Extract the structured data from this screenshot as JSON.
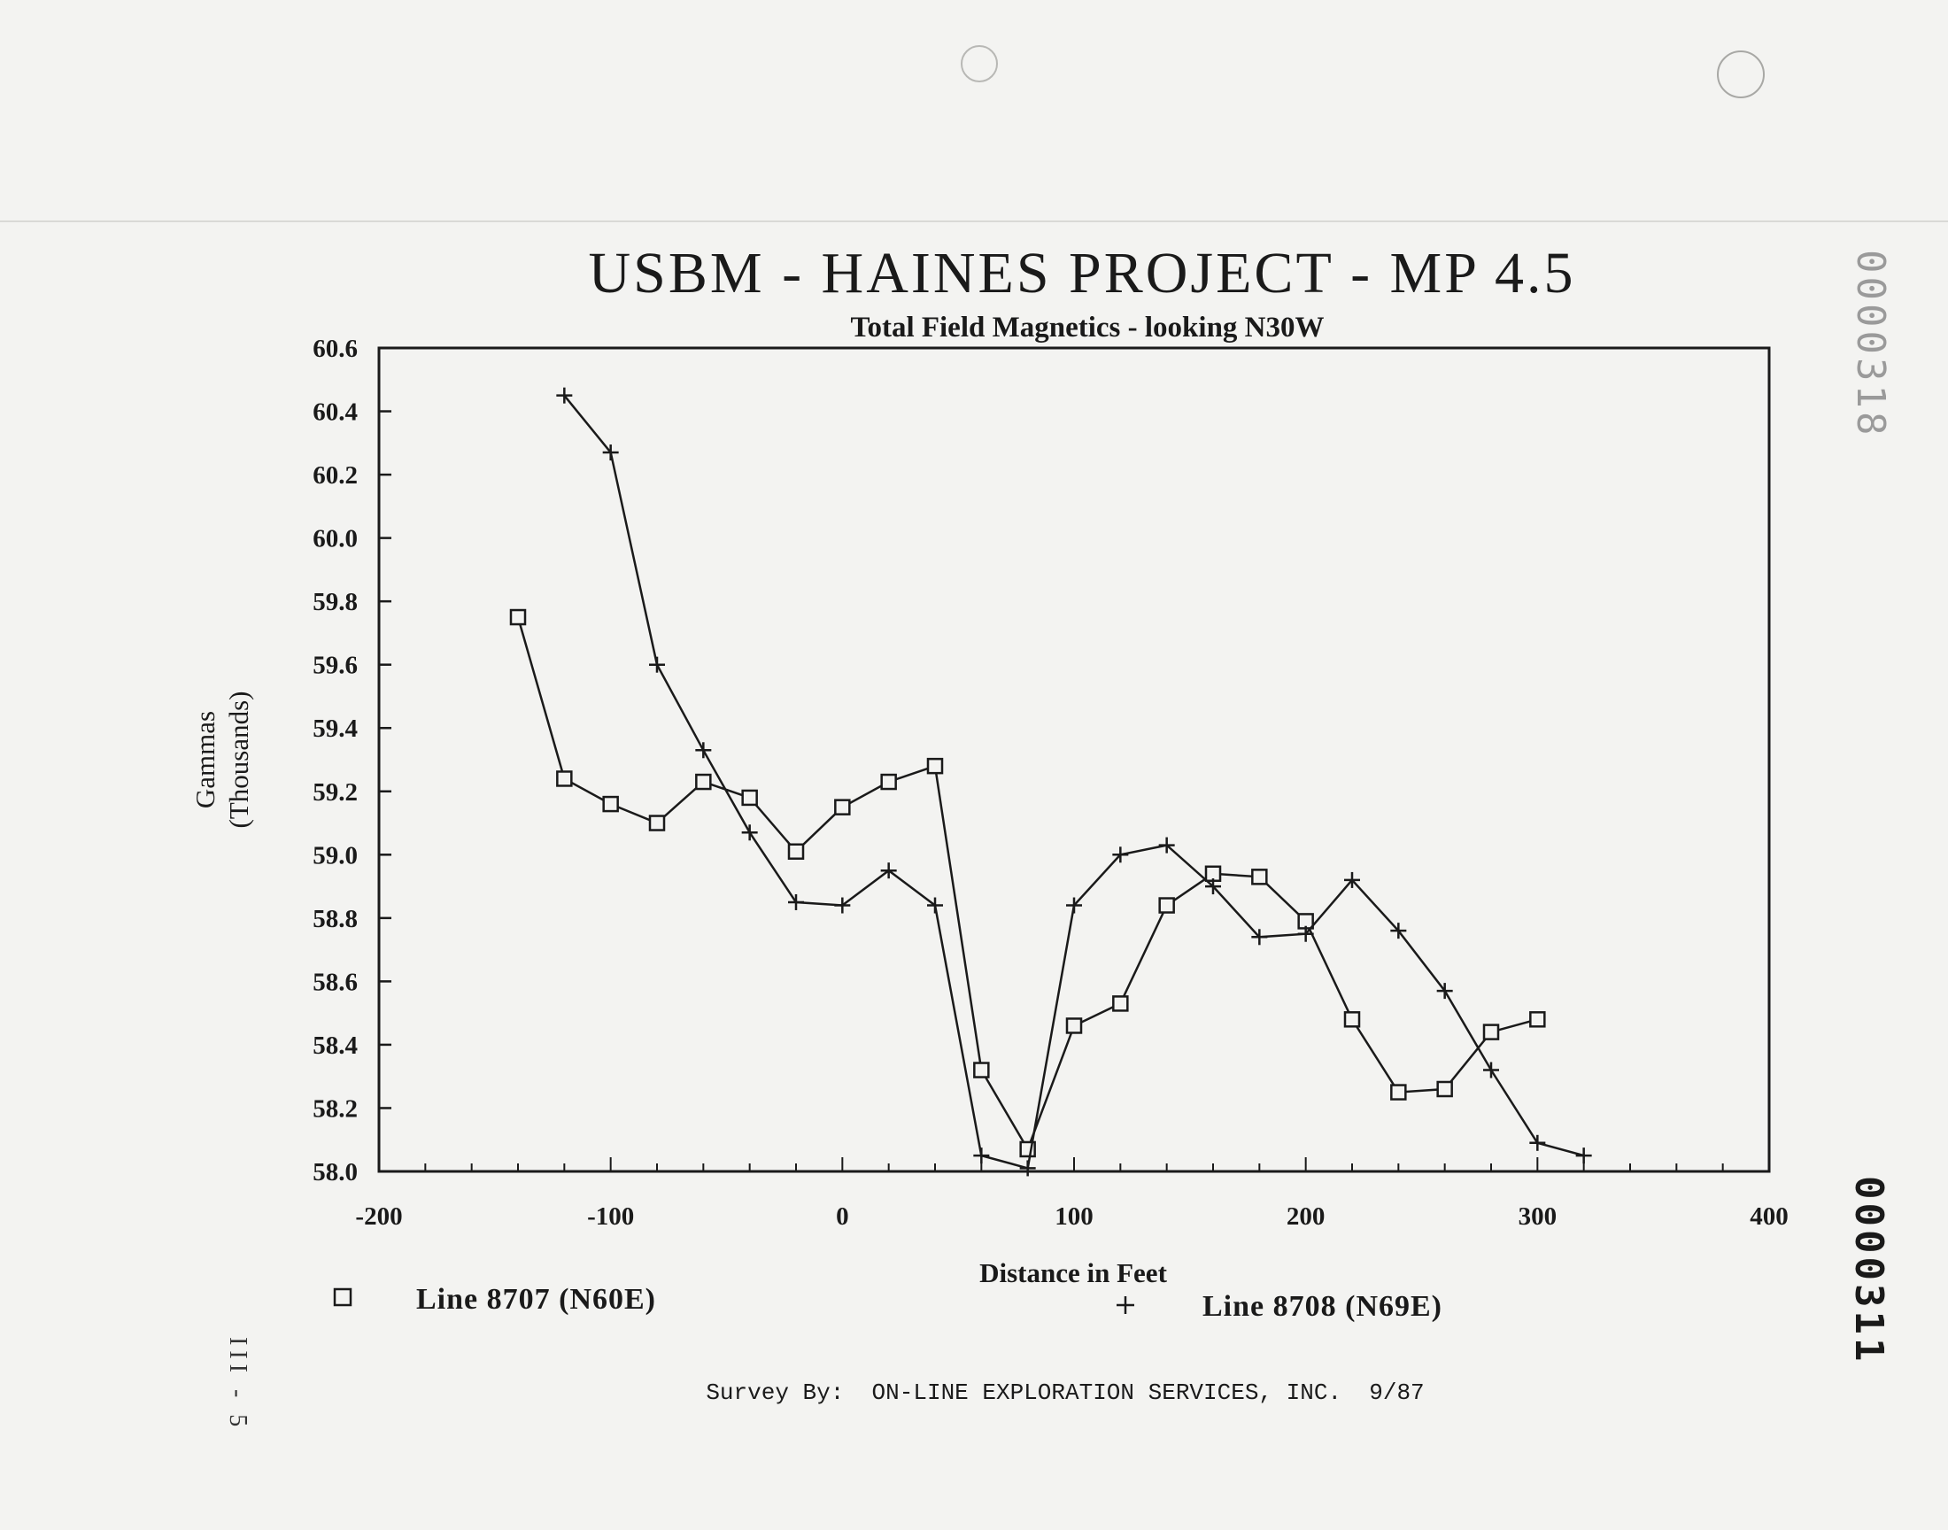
{
  "page": {
    "background": "#f3f3f1",
    "ink": "#1a1a1a",
    "stamp_top": "0000318",
    "stamp_bottom": "0000311",
    "page_label": "III - 5",
    "footer": "Survey By:  ON-LINE EXPLORATION SERVICES, INC.  9/87"
  },
  "chart_data": {
    "type": "line",
    "title": "USBM - HAINES PROJECT - MP 4.5",
    "subtitle": "Total Field Magnetics - looking N30W",
    "xlabel": "Distance in Feet",
    "ylabel": [
      "Gammas",
      "(Thousands)"
    ],
    "xlim": [
      -200,
      400
    ],
    "ylim": [
      58.0,
      60.6
    ],
    "x_ticks": [
      -200,
      -100,
      0,
      100,
      200,
      300,
      400
    ],
    "x_tick_labels": [
      "-200",
      "-100",
      "0",
      "100",
      "200",
      "300",
      "400"
    ],
    "y_ticks": [
      58.0,
      58.2,
      58.4,
      58.6,
      58.8,
      59.0,
      59.2,
      59.4,
      59.6,
      59.8,
      60.0,
      60.2,
      60.4,
      60.6
    ],
    "y_tick_labels": [
      "58.0",
      "58.2",
      "58.4",
      "58.6",
      "58.8",
      "59.0",
      "59.2",
      "59.4",
      "59.6",
      "59.8",
      "60.0",
      "60.2",
      "60.4",
      "60.6"
    ],
    "grid": false,
    "legend_position": "bottom",
    "series": [
      {
        "name": "Line 8707 (N60E)",
        "marker": "square",
        "points": [
          [
            -140,
            59.75
          ],
          [
            -120,
            59.24
          ],
          [
            -100,
            59.16
          ],
          [
            -80,
            59.1
          ],
          [
            -60,
            59.23
          ],
          [
            -40,
            59.18
          ],
          [
            -20,
            59.01
          ],
          [
            0,
            59.15
          ],
          [
            20,
            59.23
          ],
          [
            40,
            59.28
          ],
          [
            60,
            58.32
          ],
          [
            80,
            58.07
          ],
          [
            100,
            58.46
          ],
          [
            120,
            58.53
          ],
          [
            140,
            58.84
          ],
          [
            160,
            58.94
          ],
          [
            180,
            58.93
          ],
          [
            200,
            58.79
          ],
          [
            220,
            58.48
          ],
          [
            240,
            58.25
          ],
          [
            260,
            58.26
          ],
          [
            280,
            58.44
          ],
          [
            300,
            58.48
          ]
        ]
      },
      {
        "name": "Line 8708 (N69E)",
        "marker": "plus",
        "points": [
          [
            -120,
            60.45
          ],
          [
            -100,
            60.27
          ],
          [
            -80,
            59.6
          ],
          [
            -60,
            59.33
          ],
          [
            -40,
            59.07
          ],
          [
            -20,
            58.85
          ],
          [
            0,
            58.84
          ],
          [
            20,
            58.95
          ],
          [
            40,
            58.84
          ],
          [
            60,
            58.05
          ],
          [
            80,
            58.01
          ],
          [
            100,
            58.84
          ],
          [
            120,
            59.0
          ],
          [
            140,
            59.03
          ],
          [
            160,
            58.9
          ],
          [
            180,
            58.74
          ],
          [
            200,
            58.75
          ],
          [
            220,
            58.92
          ],
          [
            240,
            58.76
          ],
          [
            260,
            58.57
          ],
          [
            280,
            58.32
          ],
          [
            300,
            58.09
          ],
          [
            320,
            58.05
          ]
        ]
      }
    ]
  }
}
